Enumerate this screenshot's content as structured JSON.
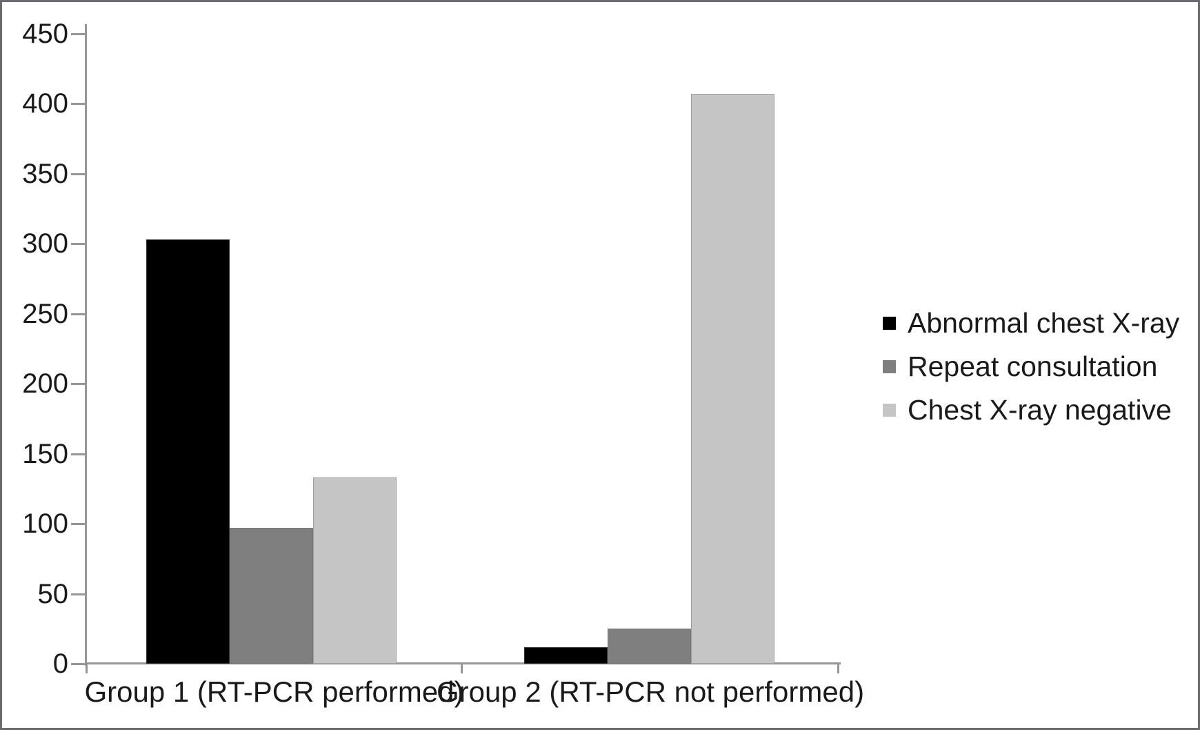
{
  "chart_data": {
    "type": "bar",
    "title": "",
    "xlabel": "",
    "ylabel": "",
    "categories": [
      "Group 1 (RT-PCR performed)",
      "Group 2 (RT-PCR not performed)"
    ],
    "series": [
      {
        "name": "Abnormal chest X-ray",
        "color": "#000000",
        "values": [
          303,
          12
        ]
      },
      {
        "name": "Repeat consultation",
        "color": "#7f7f7f",
        "values": [
          97,
          25
        ]
      },
      {
        "name": "Chest X-ray negative",
        "color": "#c5c5c5",
        "values": [
          133,
          407
        ]
      }
    ],
    "ylim": [
      0,
      450
    ],
    "yticks": [
      0,
      50,
      100,
      150,
      200,
      250,
      300,
      350,
      400,
      450
    ],
    "grid": false,
    "legend_position": "right",
    "axis_color": "#969696",
    "text_color": "#1a1a1a"
  }
}
